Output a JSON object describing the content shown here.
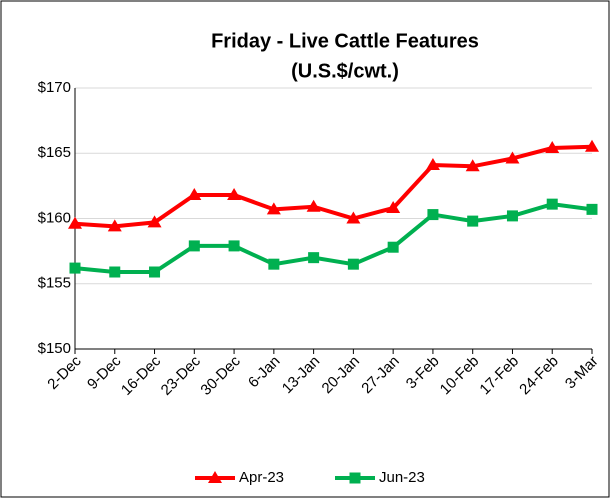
{
  "chart_data": {
    "type": "line",
    "title": [
      "Friday - Live Cattle Features",
      "(U.S.$/cwt.)"
    ],
    "categories": [
      "2-Dec",
      "9-Dec",
      "16-Dec",
      "23-Dec",
      "30-Dec",
      "6-Jan",
      "13-Jan",
      "20-Jan",
      "27-Jan",
      "3-Feb",
      "10-Feb",
      "17-Feb",
      "24-Feb",
      "3-Mar"
    ],
    "series": [
      {
        "name": "Apr-23",
        "color": "#ff0000",
        "marker": "triangle",
        "values": [
          159.6,
          159.4,
          159.7,
          161.8,
          161.8,
          160.7,
          160.9,
          160.0,
          160.8,
          164.1,
          164.0,
          164.6,
          165.4,
          165.5
        ]
      },
      {
        "name": "Jun-23",
        "color": "#00b050",
        "marker": "square",
        "values": [
          156.2,
          155.9,
          155.9,
          157.9,
          157.9,
          156.5,
          157.0,
          156.5,
          157.8,
          160.3,
          159.8,
          160.2,
          161.1,
          160.7
        ]
      }
    ],
    "ylim": [
      150,
      170
    ],
    "yticks": [
      {
        "value": 150,
        "label": "$150"
      },
      {
        "value": 155,
        "label": "$155"
      },
      {
        "value": 160,
        "label": "$160"
      },
      {
        "value": 165,
        "label": "$165"
      },
      {
        "value": 170,
        "label": "$170"
      }
    ],
    "grid": true,
    "legend": "bottom"
  }
}
